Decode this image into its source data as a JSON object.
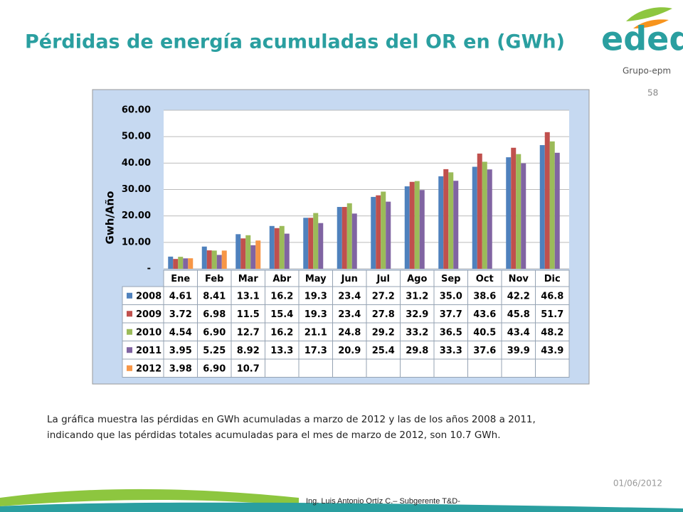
{
  "slide": {
    "title": "Pérdidas de energía acumuladas del OR en (GWh)",
    "logo": "edeq",
    "group": "Grupo-epm",
    "page_number": "58",
    "description": [
      "La gráfica muestra las pérdidas en GWh acumuladas a marzo de 2012 y las de los años 2008 a 2011,",
      "indicando que las pérdidas totales acumuladas para el mes de marzo de 2012, son 10.7 GWh."
    ],
    "date": "01/06/2012",
    "footer": "Ing. Luis Antonio Ortíz C.– Subgerente T&D-"
  },
  "chart_data": {
    "type": "bar",
    "y_label": "Gwh/Año",
    "categories": [
      "Ene",
      "Feb",
      "Mar",
      "Abr",
      "May",
      "Jun",
      "Jul",
      "Ago",
      "Sep",
      "Oct",
      "Nov",
      "Dic"
    ],
    "series": [
      {
        "name": "2008",
        "color": "#4f81bd",
        "values": [
          4.61,
          8.41,
          13.1,
          16.2,
          19.3,
          23.4,
          27.2,
          31.2,
          35.0,
          38.6,
          42.2,
          46.8
        ],
        "value_labels": [
          "4.61",
          "8.41",
          "13.1",
          "16.2",
          "19.3",
          "23.4",
          "27.2",
          "31.2",
          "35.0",
          "38.6",
          "42.2",
          "46.8"
        ]
      },
      {
        "name": "2009",
        "color": "#c0504d",
        "values": [
          3.72,
          6.98,
          11.5,
          15.4,
          19.3,
          23.4,
          27.8,
          32.9,
          37.7,
          43.6,
          45.8,
          51.7
        ],
        "value_labels": [
          "3.72",
          "6.98",
          "11.5",
          "15.4",
          "19.3",
          "23.4",
          "27.8",
          "32.9",
          "37.7",
          "43.6",
          "45.8",
          "51.7"
        ]
      },
      {
        "name": "2010",
        "color": "#9bbb59",
        "values": [
          4.54,
          6.9,
          12.7,
          16.2,
          21.1,
          24.8,
          29.2,
          33.2,
          36.5,
          40.5,
          43.4,
          48.2
        ],
        "value_labels": [
          "4.54",
          "6.90",
          "12.7",
          "16.2",
          "21.1",
          "24.8",
          "29.2",
          "33.2",
          "36.5",
          "40.5",
          "43.4",
          "48.2"
        ]
      },
      {
        "name": "2011",
        "color": "#8064a2",
        "values": [
          3.95,
          5.25,
          8.92,
          13.3,
          17.3,
          20.9,
          25.4,
          29.8,
          33.3,
          37.6,
          39.9,
          43.9
        ],
        "value_labels": [
          "3.95",
          "5.25",
          "8.92",
          "13.3",
          "17.3",
          "20.9",
          "25.4",
          "29.8",
          "33.3",
          "37.6",
          "39.9",
          "43.9"
        ]
      },
      {
        "name": "2012",
        "color": "#f79646",
        "values": [
          3.98,
          6.9,
          10.7,
          null,
          null,
          null,
          null,
          null,
          null,
          null,
          null,
          null
        ],
        "value_labels": [
          "3.98",
          "6.90",
          "10.7",
          null,
          null,
          null,
          null,
          null,
          null,
          null,
          null,
          null
        ]
      }
    ],
    "ylim": [
      0,
      60
    ],
    "yticks": [
      {
        "value": 0,
        "label": "-"
      },
      {
        "value": 10,
        "label": "10.00"
      },
      {
        "value": 20,
        "label": "20.00"
      },
      {
        "value": 30,
        "label": "30.00"
      },
      {
        "value": 40,
        "label": "40.00"
      },
      {
        "value": 50,
        "label": "50.00"
      },
      {
        "value": 60,
        "label": "60.00"
      }
    ],
    "grid": true
  }
}
